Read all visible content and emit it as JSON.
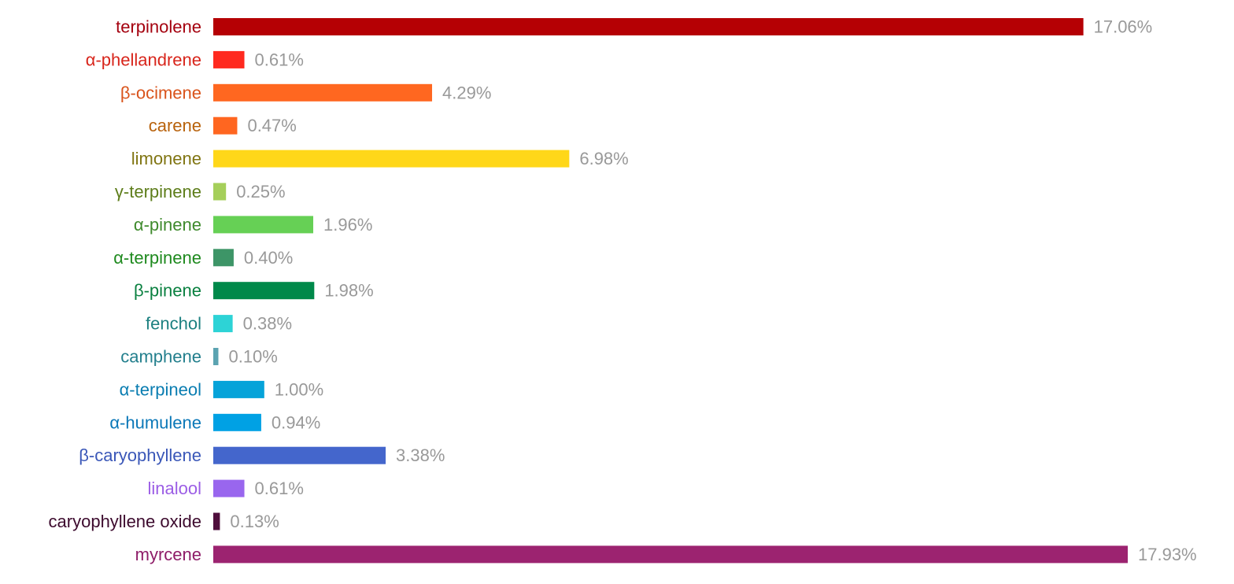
{
  "chart_data": {
    "type": "bar",
    "orientation": "horizontal",
    "categories": [
      "terpinolene",
      "α-phellandrene",
      "β-ocimene",
      "carene",
      "limonene",
      "γ-terpinene",
      "α-pinene",
      "α-terpinene",
      "β-pinene",
      "fenchol",
      "camphene",
      "α-terpineol",
      "α-humulene",
      "β-caryophyllene",
      "linalool",
      "caryophyllene oxide",
      "myrcene"
    ],
    "values": [
      17.06,
      0.61,
      4.29,
      0.47,
      6.98,
      0.25,
      1.96,
      0.4,
      1.98,
      0.38,
      0.1,
      1.0,
      0.94,
      3.38,
      0.61,
      0.13,
      17.93
    ],
    "value_labels": [
      "17.06%",
      "0.61%",
      "4.29%",
      "0.47%",
      "6.98%",
      "0.25%",
      "1.96%",
      "0.40%",
      "1.98%",
      "0.38%",
      "0.10%",
      "1.00%",
      "0.94%",
      "3.38%",
      "0.61%",
      "0.13%",
      "17.93%"
    ],
    "colors": [
      "#b50004",
      "#ff2a1f",
      "#ff6720",
      "#ff6620",
      "#ffd719",
      "#a5cf5a",
      "#66d055",
      "#3d9567",
      "#00894a",
      "#2dd3d6",
      "#5ba3b1",
      "#06a3d9",
      "#00a1e4",
      "#4466cc",
      "#9966ee",
      "#4f0e3c",
      "#9c2370"
    ],
    "label_colors": [
      "#a4000e",
      "#d8251b",
      "#d9531b",
      "#b8620c",
      "#807512",
      "#5d7d1a",
      "#3f8a2d",
      "#1f8a1f",
      "#0a8040",
      "#1c8080",
      "#237f8d",
      "#0a7db1",
      "#0b78b8",
      "#3a57b8",
      "#9b5de5",
      "#3d0b2e",
      "#8e1c68"
    ],
    "value_label_color": "#999999"
  }
}
